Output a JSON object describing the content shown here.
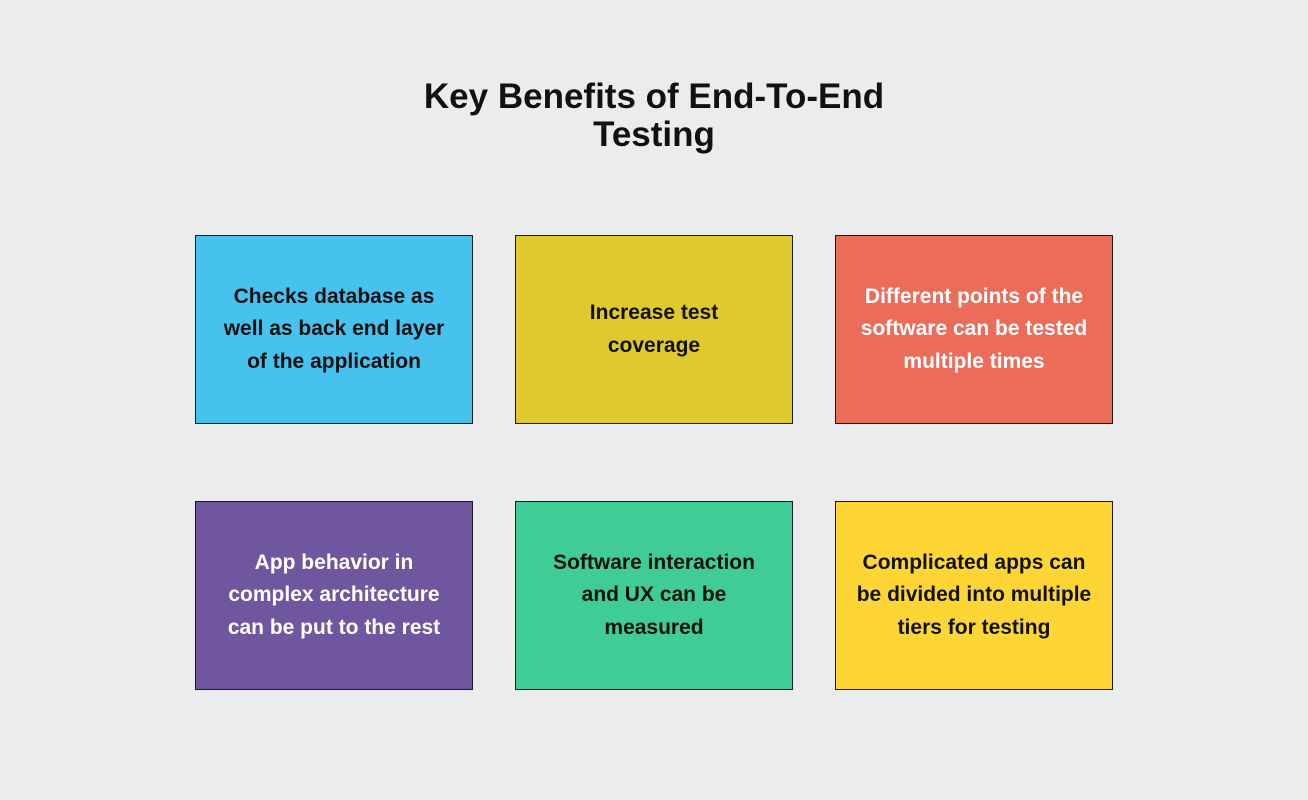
{
  "title": "Key Benefits of End-To-End Testing",
  "cards": [
    {
      "text": "Checks database as well as back end layer of the application",
      "color": "#47c1ee",
      "text_color": "#111111"
    },
    {
      "text": "Increase test coverage",
      "color": "#dfc92c",
      "text_color": "#111111"
    },
    {
      "text": "Different points of the software can be tested multiple times",
      "color": "#ec6c5a",
      "text_color": "#ffffff"
    },
    {
      "text": "App behavior in complex architecture can be put to the rest",
      "color": "#6f569f",
      "text_color": "#ffffff"
    },
    {
      "text": "Software interaction and UX can be measured",
      "color": "#40cc96",
      "text_color": "#111111"
    },
    {
      "text": "Complicated apps can be divided into multiple tiers for testing",
      "color": "#fdd636",
      "text_color": "#111111"
    }
  ]
}
